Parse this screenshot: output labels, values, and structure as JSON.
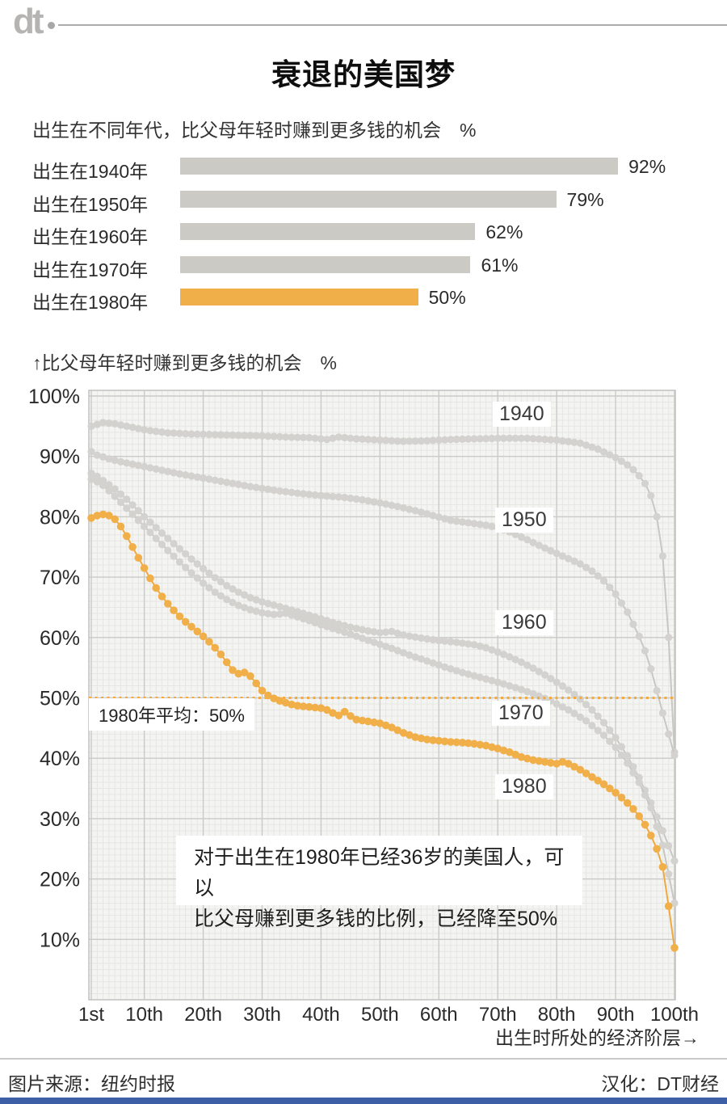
{
  "header": {
    "logo": "dt"
  },
  "title": "衰退的美国梦",
  "footer": {
    "source": "图片来源：纽约时报",
    "credit": "汉化：DT财经"
  },
  "colors": {
    "accent": "#F1AF49",
    "accent_line": "#EFA93F",
    "avg_line": "#F4A93C",
    "bar_gray": "#CBCAC5",
    "dot_gray": "#D3D2CE",
    "dot_gray_line": "#C8C7C3",
    "plot_bg": "#F4F4F2",
    "grid_minor": "#E6E6E3",
    "grid_major": "#CACAC7",
    "plot_border": "#C1C1BE",
    "brand_blue": "#3C5FA5"
  },
  "chart_data": [
    {
      "type": "bar",
      "title": "出生在不同年代，比父母年轻时赚到更多钱的机会　%",
      "categories": [
        "出生在1940年",
        "出生在1950年",
        "出生在1960年",
        "出生在1970年",
        "出生在1980年"
      ],
      "values": [
        92,
        79,
        62,
        61,
        50
      ],
      "value_labels": [
        "92%",
        "79%",
        "62%",
        "61%",
        "50%"
      ],
      "highlight_index": 4,
      "xlim": [
        0,
        100
      ]
    },
    {
      "type": "scatter-line",
      "ylabel": "↑比父母年轻时赚到更多钱的机会　%",
      "xlabel": "出生时所处的经济阶层→",
      "xlim": [
        1,
        100
      ],
      "ylim": [
        0,
        101
      ],
      "grid": true,
      "x_tick_positions": [
        1,
        10,
        20,
        30,
        40,
        50,
        60,
        70,
        80,
        90,
        100
      ],
      "x_tick_labels": [
        "1st",
        "10th",
        "20th",
        "30th",
        "40th",
        "50th",
        "60th",
        "70th",
        "80th",
        "90th",
        "100th"
      ],
      "y_tick_labels": [
        "100%",
        "90%",
        "80%",
        "70%",
        "60%",
        "50%",
        "40%",
        "30%",
        "20%",
        "10%"
      ],
      "reference_line": {
        "y": 50,
        "label": "1980年平均：50%"
      },
      "annotation": [
        "对于出生在1980年已经36岁的美国人，可以",
        "比父母赚到更多钱的比例，已经降至50%"
      ],
      "series": [
        {
          "name": "1940",
          "color": "gray",
          "points": [
            [
              1,
              95.0
            ],
            [
              3,
              95.6
            ],
            [
              5,
              95.4
            ],
            [
              7,
              95.0
            ],
            [
              10,
              94.4
            ],
            [
              14,
              93.9
            ],
            [
              18,
              93.7
            ],
            [
              22,
              93.6
            ],
            [
              26,
              93.5
            ],
            [
              30,
              93.4
            ],
            [
              34,
              93.2
            ],
            [
              38,
              93.1
            ],
            [
              41,
              92.8
            ],
            [
              43,
              93.2
            ],
            [
              46,
              92.9
            ],
            [
              50,
              92.7
            ],
            [
              54,
              92.5
            ],
            [
              58,
              92.6
            ],
            [
              62,
              92.8
            ],
            [
              66,
              92.9
            ],
            [
              70,
              93.0
            ],
            [
              75,
              93.0
            ],
            [
              80,
              92.7
            ],
            [
              84,
              92.2
            ],
            [
              87,
              91.2
            ],
            [
              90,
              89.8
            ],
            [
              92,
              88.6
            ],
            [
              93,
              87.8
            ],
            [
              94,
              86.8
            ],
            [
              95,
              85.5
            ],
            [
              96,
              83.5
            ],
            [
              97,
              80.0
            ],
            [
              98,
              73.5
            ],
            [
              99,
              60.0
            ],
            [
              100,
              41.0
            ]
          ]
        },
        {
          "name": "1950",
          "color": "gray",
          "points": [
            [
              1,
              90.8
            ],
            [
              2,
              90.2
            ],
            [
              4,
              89.6
            ],
            [
              6,
              89.1
            ],
            [
              8,
              88.7
            ],
            [
              10,
              88.3
            ],
            [
              13,
              87.7
            ],
            [
              16,
              87.1
            ],
            [
              20,
              86.4
            ],
            [
              24,
              85.7
            ],
            [
              28,
              85.0
            ],
            [
              32,
              84.4
            ],
            [
              36,
              83.9
            ],
            [
              40,
              83.5
            ],
            [
              44,
              83.2
            ],
            [
              47,
              82.8
            ],
            [
              50,
              82.3
            ],
            [
              53,
              81.7
            ],
            [
              56,
              81.0
            ],
            [
              59,
              80.2
            ],
            [
              62,
              79.4
            ],
            [
              65,
              79.0
            ],
            [
              68,
              78.6
            ],
            [
              70,
              78.2
            ],
            [
              72,
              77.5
            ],
            [
              75,
              76.2
            ],
            [
              78,
              74.8
            ],
            [
              81,
              73.5
            ],
            [
              84,
              72.2
            ],
            [
              86,
              71.0
            ],
            [
              88,
              69.4
            ],
            [
              90,
              67.2
            ],
            [
              92,
              64.2
            ],
            [
              94,
              60.2
            ],
            [
              95,
              57.8
            ],
            [
              96,
              54.8
            ],
            [
              97,
              51.2
            ],
            [
              98,
              47.5
            ],
            [
              99,
              44.0
            ],
            [
              100,
              40.5
            ]
          ]
        },
        {
          "name": "1960",
          "color": "gray",
          "points": [
            [
              1,
              87.2
            ],
            [
              2,
              86.7
            ],
            [
              3,
              86.0
            ],
            [
              5,
              84.6
            ],
            [
              7,
              82.9
            ],
            [
              9,
              81.0
            ],
            [
              10,
              80.0
            ],
            [
              12,
              78.2
            ],
            [
              14,
              76.4
            ],
            [
              16,
              74.7
            ],
            [
              18,
              73.0
            ],
            [
              20,
              71.4
            ],
            [
              22,
              69.9
            ],
            [
              24,
              68.6
            ],
            [
              26,
              67.5
            ],
            [
              28,
              66.6
            ],
            [
              30,
              65.9
            ],
            [
              33,
              65.1
            ],
            [
              36,
              64.3
            ],
            [
              39,
              63.4
            ],
            [
              42,
              62.5
            ],
            [
              45,
              61.7
            ],
            [
              48,
              61.1
            ],
            [
              50,
              60.8
            ],
            [
              52,
              61.0
            ],
            [
              54,
              60.4
            ],
            [
              57,
              59.9
            ],
            [
              60,
              59.5
            ],
            [
              63,
              59.2
            ],
            [
              66,
              58.8
            ],
            [
              68,
              58.3
            ],
            [
              70,
              57.6
            ],
            [
              72,
              56.8
            ],
            [
              74,
              55.9
            ],
            [
              76,
              54.9
            ],
            [
              78,
              53.8
            ],
            [
              80,
              52.6
            ],
            [
              82,
              51.3
            ],
            [
              84,
              49.8
            ],
            [
              86,
              48.0
            ],
            [
              88,
              45.9
            ],
            [
              90,
              43.4
            ],
            [
              92,
              40.4
            ],
            [
              94,
              36.8
            ],
            [
              96,
              32.6
            ],
            [
              98,
              28.0
            ],
            [
              100,
              23.0
            ]
          ]
        },
        {
          "name": "1970",
          "color": "gray",
          "points": [
            [
              1,
              86.2
            ],
            [
              2,
              85.8
            ],
            [
              3,
              85.2
            ],
            [
              5,
              83.4
            ],
            [
              7,
              81.4
            ],
            [
              9,
              79.4
            ],
            [
              10,
              78.4
            ],
            [
              12,
              76.4
            ],
            [
              14,
              74.4
            ],
            [
              16,
              72.5
            ],
            [
              18,
              70.7
            ],
            [
              20,
              69.0
            ],
            [
              22,
              67.5
            ],
            [
              24,
              66.3
            ],
            [
              26,
              65.3
            ],
            [
              28,
              64.6
            ],
            [
              30,
              64.1
            ],
            [
              32,
              63.8
            ],
            [
              34,
              64.0
            ],
            [
              36,
              63.4
            ],
            [
              38,
              62.8
            ],
            [
              40,
              62.1
            ],
            [
              43,
              61.2
            ],
            [
              46,
              60.2
            ],
            [
              49,
              59.2
            ],
            [
              52,
              58.2
            ],
            [
              55,
              57.1
            ],
            [
              58,
              56.1
            ],
            [
              61,
              55.1
            ],
            [
              64,
              54.2
            ],
            [
              67,
              53.4
            ],
            [
              70,
              52.6
            ],
            [
              73,
              51.7
            ],
            [
              76,
              50.7
            ],
            [
              79,
              49.5
            ],
            [
              82,
              48.0
            ],
            [
              85,
              46.2
            ],
            [
              88,
              43.8
            ],
            [
              90,
              41.8
            ],
            [
              92,
              39.2
            ],
            [
              94,
              36.0
            ],
            [
              96,
              31.8
            ],
            [
              98,
              25.6
            ],
            [
              100,
              16.0
            ]
          ]
        },
        {
          "name": "1980",
          "color": "orange",
          "points": [
            [
              1,
              79.8
            ],
            [
              2,
              80.2
            ],
            [
              3,
              80.4
            ],
            [
              4,
              80.2
            ],
            [
              5,
              79.6
            ],
            [
              6,
              78.4
            ],
            [
              7,
              76.8
            ],
            [
              8,
              75.0
            ],
            [
              9,
              73.2
            ],
            [
              10,
              71.5
            ],
            [
              11,
              69.8
            ],
            [
              12,
              68.2
            ],
            [
              13,
              66.8
            ],
            [
              14,
              65.6
            ],
            [
              15,
              64.5
            ],
            [
              16,
              63.5
            ],
            [
              17,
              62.6
            ],
            [
              18,
              61.8
            ],
            [
              19,
              61.0
            ],
            [
              20,
              60.2
            ],
            [
              21,
              59.3
            ],
            [
              22,
              58.3
            ],
            [
              23,
              57.2
            ],
            [
              24,
              55.9
            ],
            [
              25,
              54.6
            ],
            [
              26,
              54.0
            ],
            [
              27,
              54.2
            ],
            [
              28,
              53.6
            ],
            [
              29,
              52.4
            ],
            [
              30,
              51.2
            ],
            [
              31,
              50.4
            ],
            [
              32,
              49.9
            ],
            [
              33,
              49.5
            ],
            [
              34,
              49.2
            ],
            [
              35,
              48.9
            ],
            [
              36,
              48.7
            ],
            [
              38,
              48.5
            ],
            [
              40,
              48.3
            ],
            [
              41,
              48.0
            ],
            [
              42,
              47.5
            ],
            [
              43,
              47.1
            ],
            [
              44,
              47.7
            ],
            [
              45,
              47.0
            ],
            [
              46,
              46.4
            ],
            [
              48,
              46.1
            ],
            [
              50,
              45.8
            ],
            [
              52,
              45.1
            ],
            [
              54,
              44.2
            ],
            [
              56,
              43.5
            ],
            [
              58,
              43.1
            ],
            [
              60,
              42.9
            ],
            [
              62,
              42.7
            ],
            [
              64,
              42.6
            ],
            [
              66,
              42.4
            ],
            [
              68,
              42.1
            ],
            [
              70,
              41.6
            ],
            [
              72,
              41.0
            ],
            [
              74,
              40.2
            ],
            [
              76,
              39.7
            ],
            [
              78,
              39.4
            ],
            [
              80,
              39.1
            ],
            [
              81,
              39.4
            ],
            [
              82,
              39.1
            ],
            [
              83,
              38.6
            ],
            [
              84,
              38.1
            ],
            [
              85,
              37.5
            ],
            [
              86,
              36.9
            ],
            [
              87,
              36.3
            ],
            [
              88,
              35.7
            ],
            [
              89,
              35.0
            ],
            [
              90,
              34.3
            ],
            [
              91,
              33.5
            ],
            [
              92,
              32.6
            ],
            [
              93,
              31.6
            ],
            [
              94,
              30.4
            ],
            [
              95,
              29.0
            ],
            [
              96,
              27.2
            ],
            [
              97,
              25.0
            ],
            [
              98,
              22.0
            ],
            [
              99,
              15.5
            ],
            [
              100,
              8.6
            ]
          ]
        }
      ]
    }
  ]
}
